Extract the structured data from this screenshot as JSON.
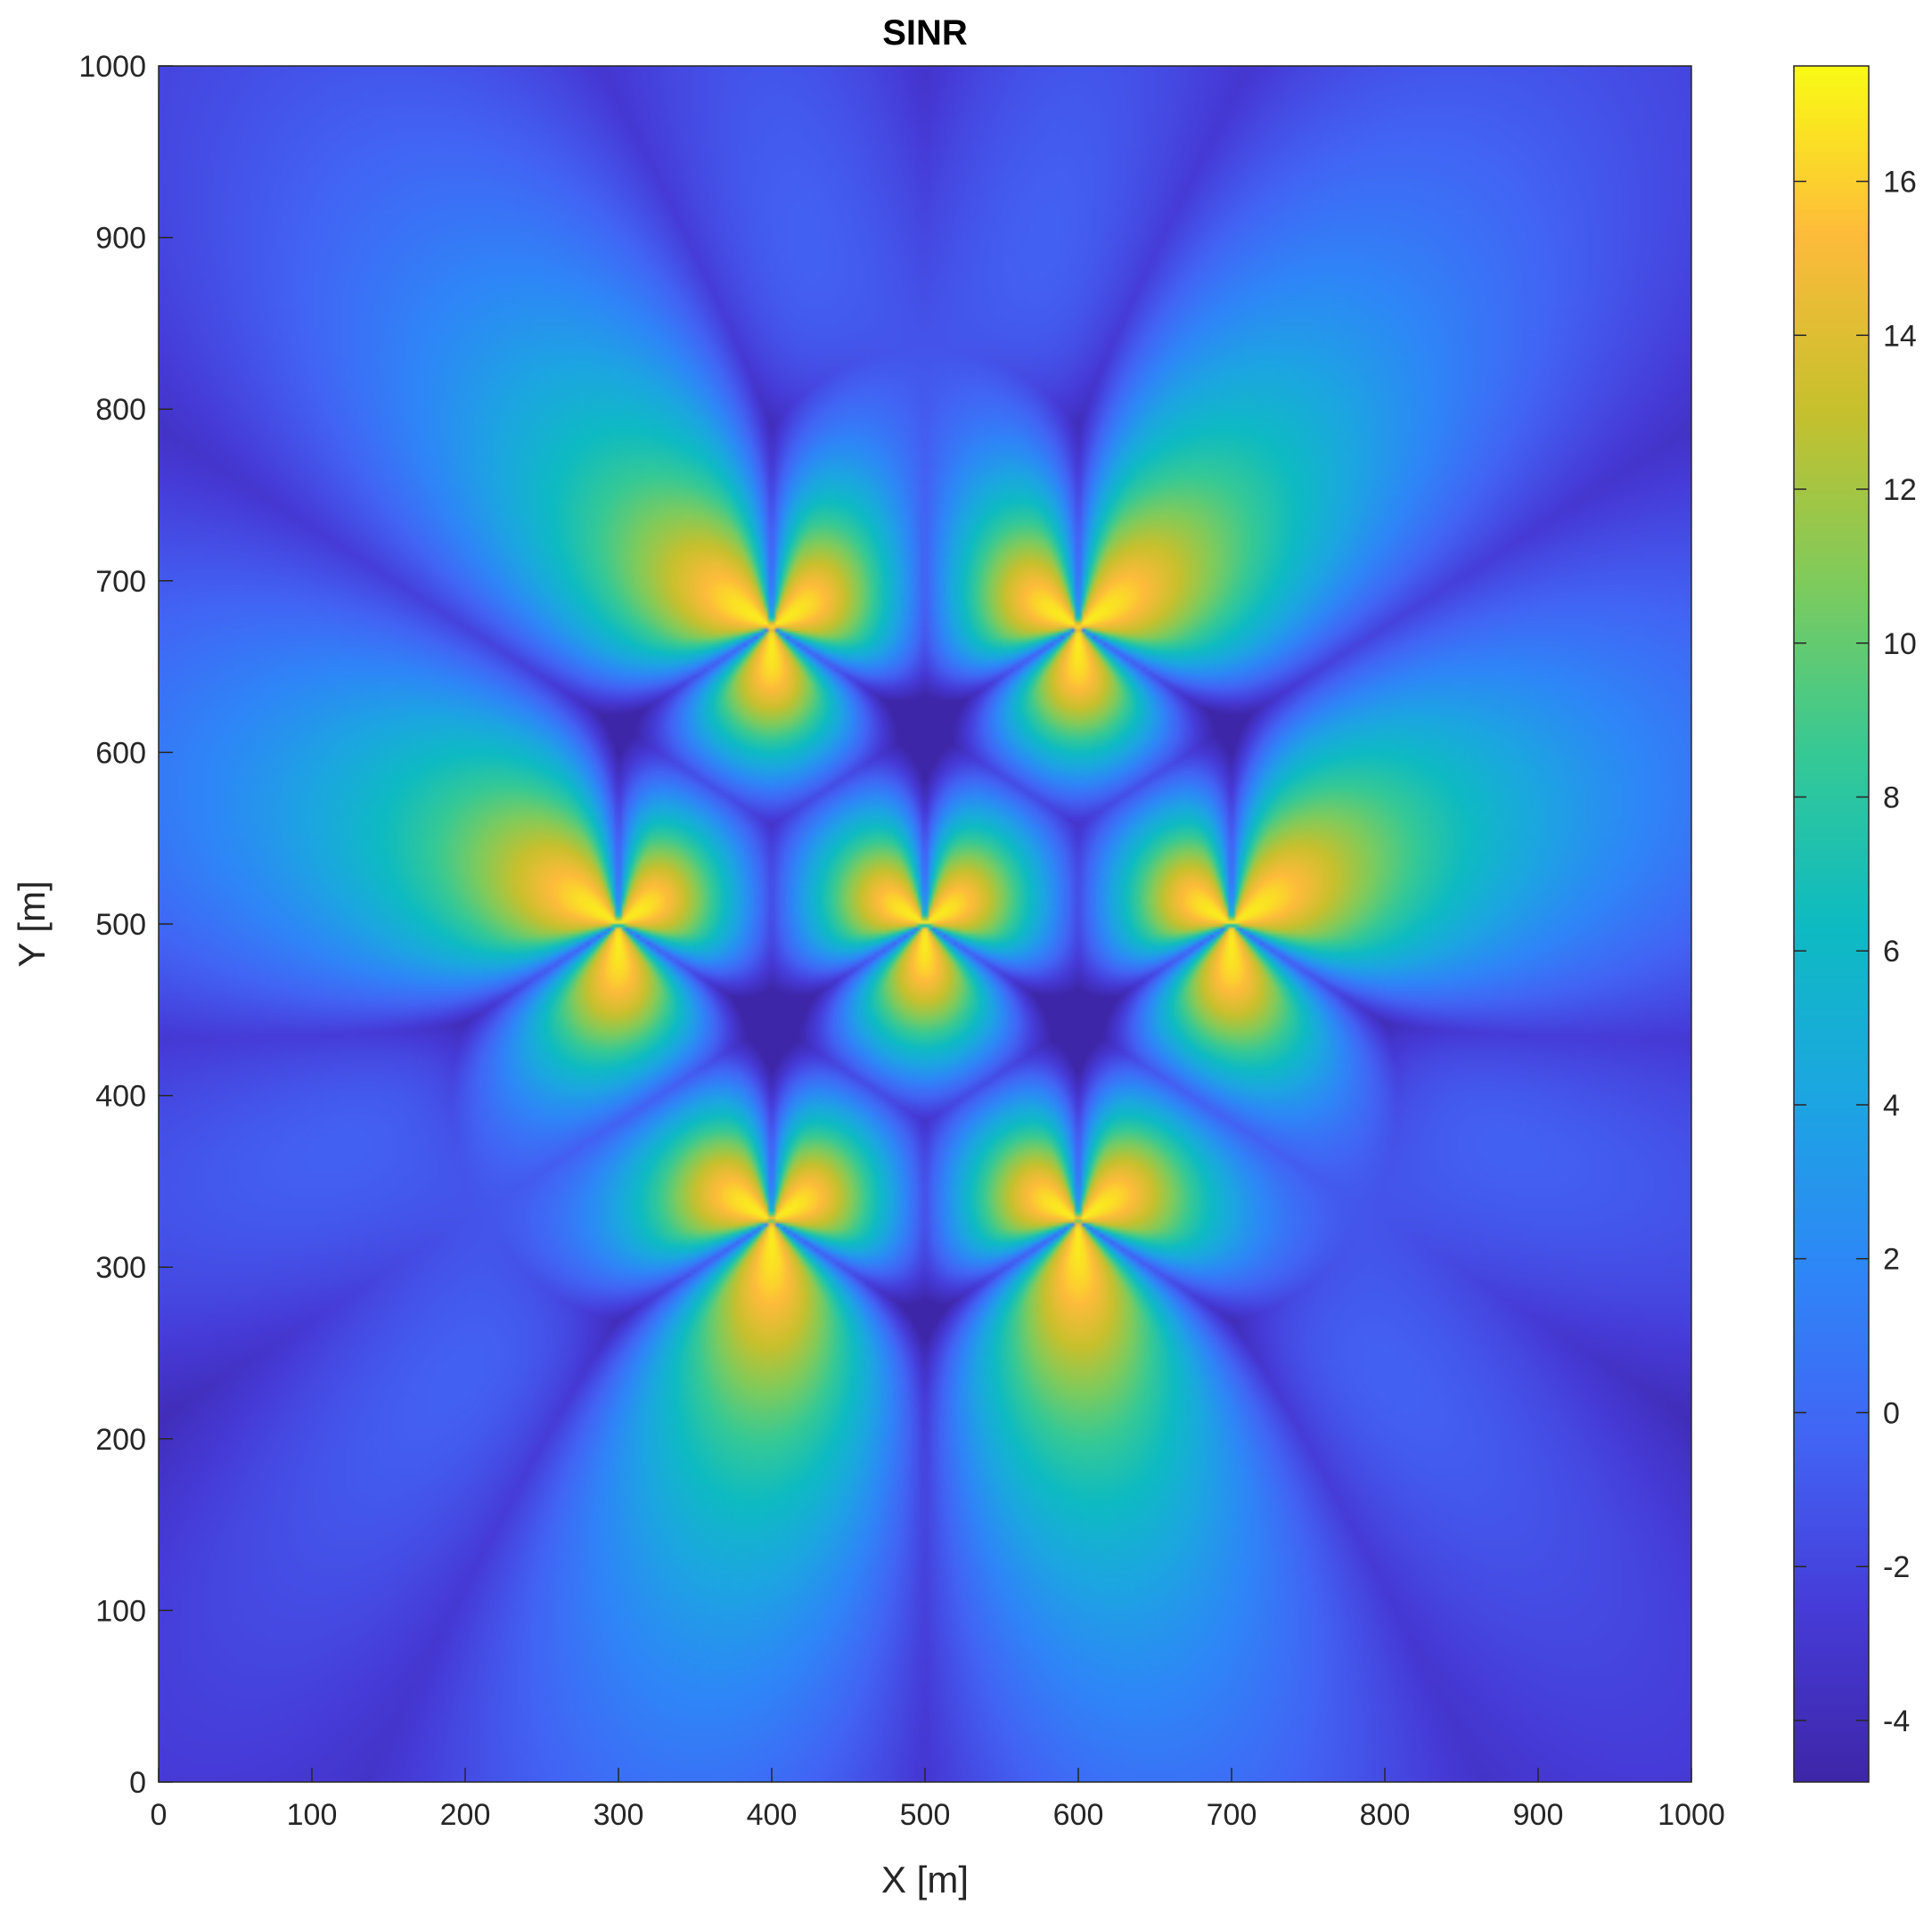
{
  "chart_data": {
    "type": "heatmap",
    "title": "SINR",
    "xlabel": "X [m]",
    "ylabel": "Y [m]",
    "xlim": [
      0,
      1000
    ],
    "ylim": [
      0,
      1000
    ],
    "x_ticks": [
      0,
      100,
      200,
      300,
      400,
      500,
      600,
      700,
      800,
      900,
      1000
    ],
    "y_ticks": [
      0,
      100,
      200,
      300,
      400,
      500,
      600,
      700,
      800,
      900,
      1000
    ],
    "colorbar": {
      "colormap": "parula",
      "clim": [
        -4.8,
        17.5
      ],
      "ticks": [
        -4,
        -2,
        0,
        2,
        4,
        6,
        8,
        10,
        12,
        14,
        16
      ]
    },
    "base_stations": [
      {
        "x": 300,
        "y": 500
      },
      {
        "x": 400,
        "y": 327
      },
      {
        "x": 400,
        "y": 673
      },
      {
        "x": 500,
        "y": 500
      },
      {
        "x": 600,
        "y": 327
      },
      {
        "x": 600,
        "y": 673
      },
      {
        "x": 700,
        "y": 500
      }
    ],
    "grid": false,
    "legend": "none",
    "colors": {
      "low": "#3e26a8",
      "mid": "#2e87f0",
      "teal": "#20b1ab",
      "high": "#fdbb3b",
      "peak": "#f9fb15"
    }
  }
}
